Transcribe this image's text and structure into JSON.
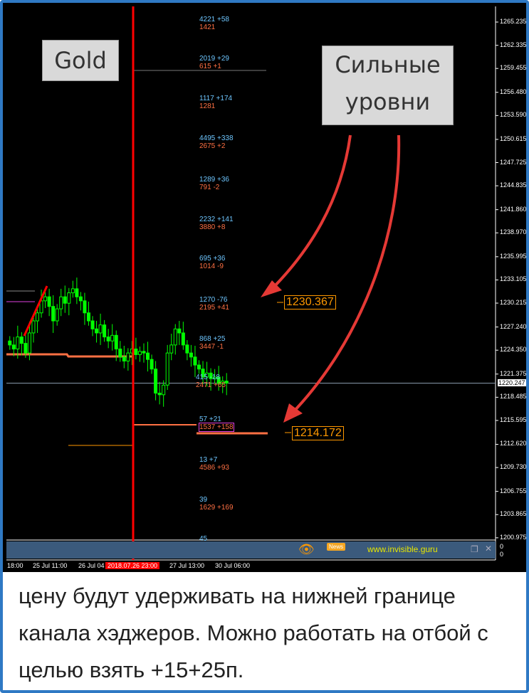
{
  "symbol_label": "Gold",
  "callout": {
    "line1": "Сильные",
    "line2": "уровни"
  },
  "price_axis": [
    "1265.235",
    "1262.335",
    "1259.455",
    "1256.480",
    "1253.590",
    "1250.615",
    "1247.725",
    "1244.835",
    "1241.860",
    "1238.970",
    "1235.995",
    "1233.105",
    "1230.215",
    "1227.240",
    "1224.350",
    "1221.375",
    "1218.485",
    "1215.595",
    "1212.620",
    "1209.730",
    "1206.755",
    "1203.865",
    "1200.975"
  ],
  "current_price": "1220.247",
  "levels": [
    {
      "a": "4221 +58",
      "b": "1421"
    },
    {
      "a": "2019 +29",
      "b": "615 +1"
    },
    {
      "a": "1117 +174",
      "b": "1281"
    },
    {
      "a": "4495 +338",
      "b": "2675 +2"
    },
    {
      "a": "1289 +36",
      "b": "791 -2"
    },
    {
      "a": "2232 +141",
      "b": "3880 +8"
    },
    {
      "a": "695 +36",
      "b": "1014 -9"
    },
    {
      "a": "1270 -76",
      "b": "2195 +41"
    },
    {
      "a": "868 +25",
      "b": "3447 -1"
    },
    {
      "a": "415 -18",
      "b": "2471 +65"
    },
    {
      "a": "57 +21",
      "b": "1537 +158"
    },
    {
      "a": "13 +7",
      "b": "4586 +93"
    },
    {
      "a": "39",
      "b": "1629 +169"
    },
    {
      "a": "45",
      "b": ""
    }
  ],
  "price_boxes": {
    "upper": "1230.367",
    "lower": "1214.172"
  },
  "closes": [
    1225,
    1224.5,
    1226,
    1225.2,
    1224,
    1226.5,
    1228,
    1229,
    1230.5,
    1231,
    1229.8,
    1228,
    1229.5,
    1231,
    1230.2,
    1231.5,
    1232,
    1231,
    1230.5,
    1229,
    1228,
    1227,
    1226.5,
    1227.5,
    1226,
    1225.5,
    1226.2,
    1224.5,
    1223.5,
    1223,
    1224,
    1224.5,
    1223.8,
    1224.2,
    1224,
    1223.2,
    1222,
    1219,
    1218.8,
    1220,
    1224,
    1225,
    1227,
    1226.5,
    1225,
    1224,
    1223.5,
    1222.5,
    1222,
    1221,
    1221.5,
    1220.8,
    1221,
    1220.2,
    1220.5,
    1220.247
  ],
  "time_axis": [
    "18:00",
    "25 Jul 11:00",
    "26 Jul 04",
    "2018.07.26 23:00",
    "27 Jul 13:00",
    "30 Jul 06:00"
  ],
  "bottom_bar": {
    "news": "News",
    "site": "www.invisible.guru",
    "sub_values": [
      "0",
      "0"
    ]
  },
  "colors": {
    "bull": "#00ff00",
    "hedge_line": "#ff7043",
    "accent_red": "#ff0000",
    "box": "#ff9800"
  },
  "caption": "цену будут удерживать на нижней границе канала хэджеров. Можно работать на отбой с целью взять +15+25п."
}
